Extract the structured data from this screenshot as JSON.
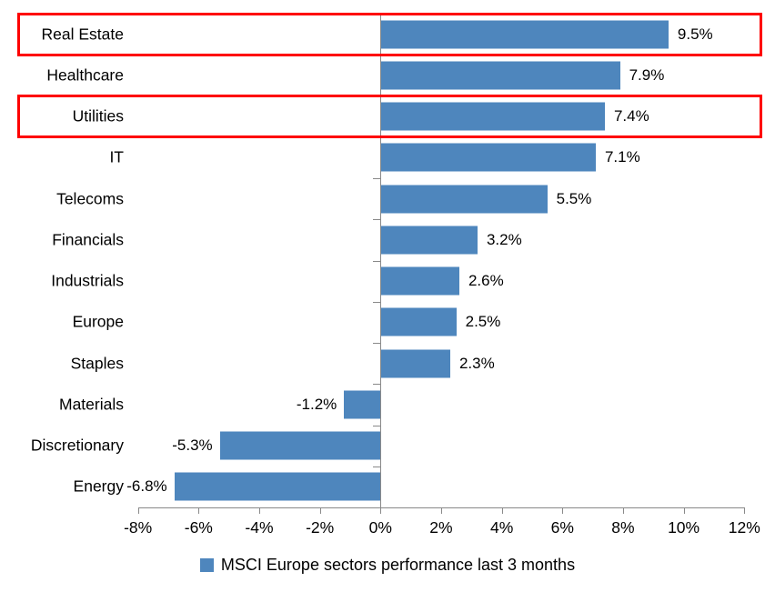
{
  "chart_data": {
    "type": "bar",
    "orientation": "horizontal",
    "title": "",
    "categories": [
      "Real Estate",
      "Healthcare",
      "Utilities",
      "IT",
      "Telecoms",
      "Financials",
      "Industrials",
      "Europe",
      "Staples",
      "Materials",
      "Discretionary",
      "Energy"
    ],
    "series": [
      {
        "name": "MSCI Europe sectors performance last 3 months",
        "values": [
          9.5,
          7.9,
          7.4,
          7.1,
          5.5,
          3.2,
          2.6,
          2.5,
          2.3,
          -1.2,
          -5.3,
          -6.8
        ],
        "color": "#4e86bd"
      }
    ],
    "data_labels": [
      "9.5%",
      "7.9%",
      "7.4%",
      "7.1%",
      "5.5%",
      "3.2%",
      "2.6%",
      "2.5%",
      "2.3%",
      "-1.2%",
      "-5.3%",
      "-6.8%"
    ],
    "xlabel": "",
    "ylabel": "",
    "xlim": [
      -8,
      12
    ],
    "x_ticks": [
      {
        "value": -8,
        "label": "-8%"
      },
      {
        "value": -6,
        "label": "-6%"
      },
      {
        "value": -4,
        "label": "-4%"
      },
      {
        "value": -2,
        "label": "-2%"
      },
      {
        "value": 0,
        "label": "0%"
      },
      {
        "value": 2,
        "label": "2%"
      },
      {
        "value": 4,
        "label": "4%"
      },
      {
        "value": 6,
        "label": "6%"
      },
      {
        "value": 8,
        "label": "8%"
      },
      {
        "value": 10,
        "label": "10%"
      },
      {
        "value": 12,
        "label": "12%"
      }
    ],
    "grid": false,
    "legend_position": "bottom",
    "highlighted_categories": [
      "Real Estate",
      "Utilities"
    ],
    "colors": {
      "bar": "#4e86bd",
      "highlight_border": "#fe0000",
      "axis": "#898989",
      "text": "#000000",
      "background": "#ffffff"
    }
  },
  "legend": {
    "label": "MSCI Europe sectors performance last 3 months",
    "swatch_color": "#4e86bd"
  }
}
